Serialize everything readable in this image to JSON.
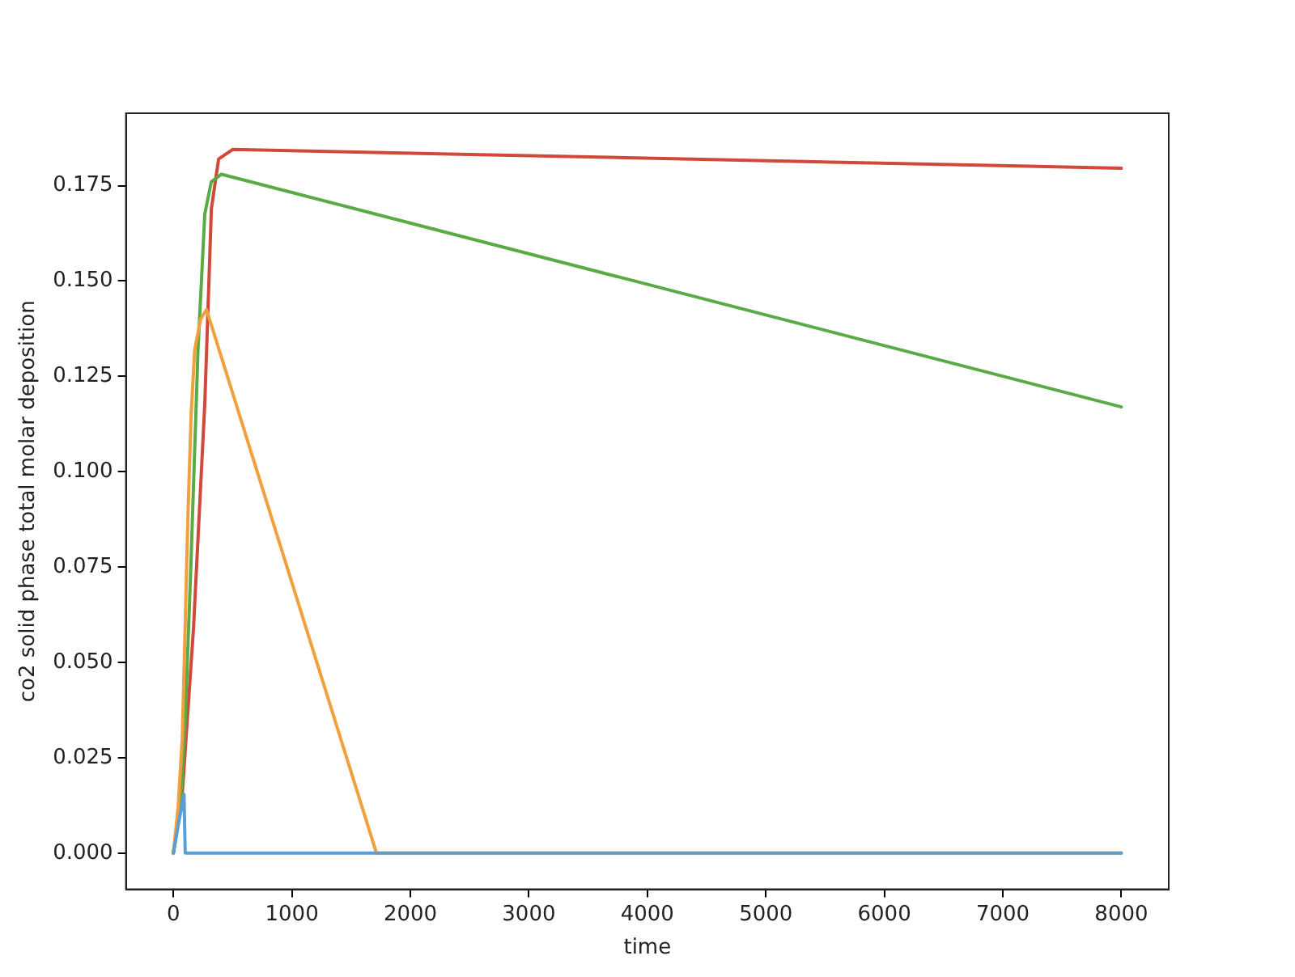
{
  "chart_data": {
    "type": "line",
    "xlabel": "time",
    "ylabel": "co2 solid phase total molar deposition",
    "xlim": [
      -400,
      8400
    ],
    "ylim": [
      -0.0095,
      0.194
    ],
    "xticks": [
      0,
      1000,
      2000,
      3000,
      4000,
      5000,
      6000,
      7000,
      8000
    ],
    "yticks": [
      {
        "value": 0,
        "label": "0.000"
      },
      {
        "value": 0.025,
        "label": "0.025"
      },
      {
        "value": 0.05,
        "label": "0.050"
      },
      {
        "value": 0.075,
        "label": "0.075"
      },
      {
        "value": 0.1,
        "label": "0.100"
      },
      {
        "value": 0.125,
        "label": "0.125"
      },
      {
        "value": 0.15,
        "label": "0.150"
      },
      {
        "value": 0.175,
        "label": "0.175"
      }
    ],
    "grid": false,
    "legend": false,
    "marker": "none",
    "line_style": "solid",
    "series": [
      {
        "color": "#5a9fd4",
        "x": [
          0,
          45,
          90,
          100,
          1720,
          8000
        ],
        "values": [
          0,
          0.008,
          0.0154,
          0,
          0,
          0
        ]
      },
      {
        "color": "#f0a03c",
        "x": [
          0,
          40,
          75,
          100,
          123,
          150,
          180,
          230,
          280,
          1714,
          8000
        ],
        "values": [
          0,
          0.012,
          0.03,
          0.06,
          0.0886,
          0.115,
          0.132,
          0.14,
          0.1425,
          0,
          0
        ]
      },
      {
        "color": "#5aab46",
        "x": [
          0,
          60,
          100,
          146,
          208,
          265,
          320,
          406,
          8000
        ],
        "values": [
          0,
          0.012,
          0.035,
          0.0738,
          0.132,
          0.1675,
          0.176,
          0.178,
          0.117
        ]
      },
      {
        "color": "#d0493a",
        "x": [
          0,
          75,
          170,
          265,
          321,
          382,
          500,
          8000
        ],
        "values": [
          0,
          0.0154,
          0.059,
          0.1177,
          0.169,
          0.182,
          0.1845,
          0.1796
        ]
      }
    ]
  }
}
